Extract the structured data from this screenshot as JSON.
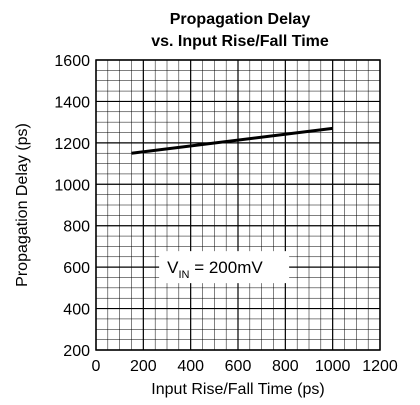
{
  "chart_data": {
    "type": "line",
    "title_line1": "Propagation Delay",
    "title_line2": "vs. Input Rise/Fall Time",
    "xlabel": "Input Rise/Fall Time (ps)",
    "ylabel": "Propagation Delay (ps)",
    "xlim": [
      0,
      1200
    ],
    "ylim": [
      200,
      1600
    ],
    "x_ticks": [
      "0",
      "200",
      "400",
      "600",
      "800",
      "1000",
      "1200"
    ],
    "y_ticks": [
      "200",
      "400",
      "600",
      "800",
      "1000",
      "1200",
      "1400",
      "1600"
    ],
    "grid": true,
    "series": [
      {
        "x": [
          150,
          1000
        ],
        "y": [
          1150,
          1270
        ]
      }
    ],
    "annotation": {
      "main": "V",
      "sub": "IN",
      "rest": " = 200mV"
    },
    "colors": {
      "line": "#000000",
      "grid": "#000000",
      "background": "#ffffff"
    }
  }
}
